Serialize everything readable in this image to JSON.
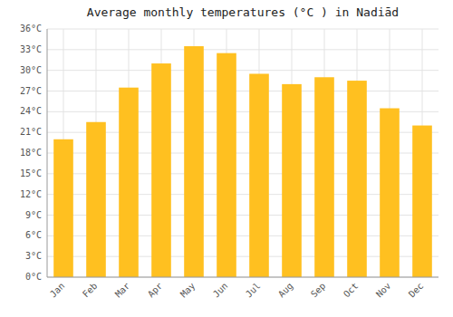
{
  "chart_data": {
    "type": "bar",
    "title": "Average monthly temperatures (°C ) in Nadiād",
    "categories": [
      "Jan",
      "Feb",
      "Mar",
      "Apr",
      "May",
      "Jun",
      "Jul",
      "Aug",
      "Sep",
      "Oct",
      "Nov",
      "Dec"
    ],
    "values": [
      20.0,
      22.5,
      27.5,
      31.0,
      33.5,
      32.5,
      29.5,
      28.0,
      29.0,
      28.5,
      24.5,
      22.0
    ],
    "color": "#FFC020",
    "ylim": [
      0,
      36
    ],
    "yticks": [
      {
        "value": 0,
        "label": "0°C"
      },
      {
        "value": 3,
        "label": "3°C"
      },
      {
        "value": 6,
        "label": "6°C"
      },
      {
        "value": 9,
        "label": "9°C"
      },
      {
        "value": 12,
        "label": "12°C"
      },
      {
        "value": 15,
        "label": "15°C"
      },
      {
        "value": 18,
        "label": "18°C"
      },
      {
        "value": 21,
        "label": "21°C"
      },
      {
        "value": 24,
        "label": "24°C"
      },
      {
        "value": 27,
        "label": "27°C"
      },
      {
        "value": 30,
        "label": "30°C"
      },
      {
        "value": 33,
        "label": "33°C"
      },
      {
        "value": 36,
        "label": "36°C"
      }
    ],
    "grid": true
  }
}
